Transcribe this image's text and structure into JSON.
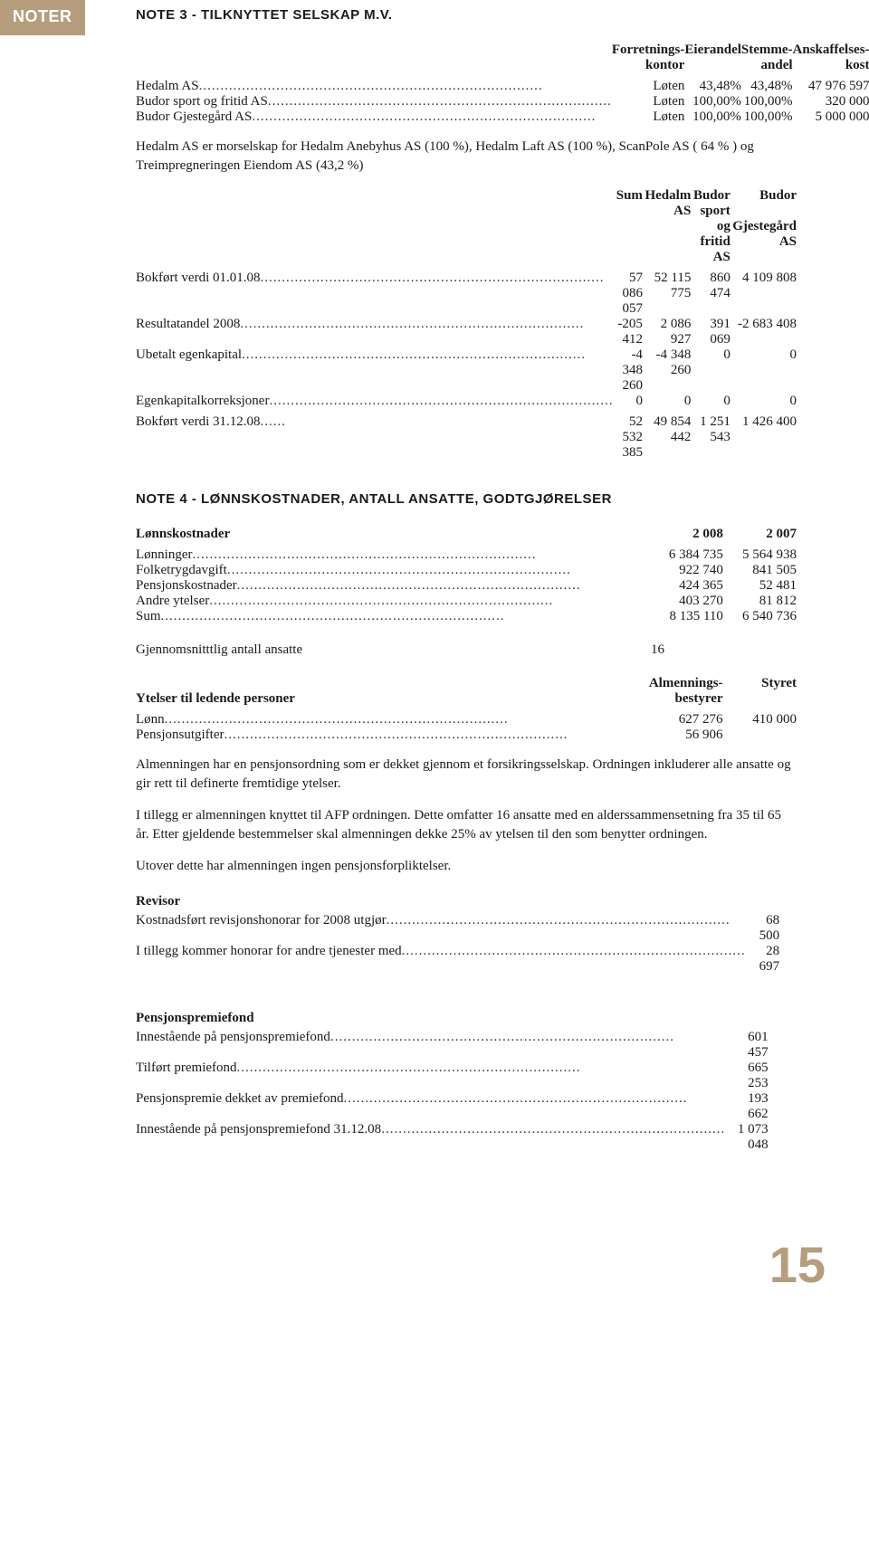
{
  "sidebar": {
    "label": "NOTER"
  },
  "note3": {
    "title": "NOTE 3 - TILKNYTTET SELSKAP M.V.",
    "headers": {
      "c1a": "Forretnings-",
      "c1b": "kontor",
      "c2": "Eierandel",
      "c3a": "Stemme-",
      "c3b": "andel",
      "c4a": "Anskaffelses-",
      "c4b": "kost"
    },
    "rows": [
      {
        "label": "Hedalm AS",
        "c1": "Løten",
        "c2": "43,48%",
        "c3": "43,48%",
        "c4": "47 976 597"
      },
      {
        "label": "Budor sport og fritid AS",
        "c1": "Løten",
        "c2": "100,00%",
        "c3": "100,00%",
        "c4": "320 000"
      },
      {
        "label": "Budor Gjestegård AS",
        "c1": "Løten",
        "c2": "100,00%",
        "c3": "100,00%",
        "c4": "5 000 000"
      }
    ],
    "note_para": "Hedalm AS er morselskap for Hedalm Anebyhus AS (100 %), Hedalm Laft AS (100 %), ScanPole AS ( 64 % ) og Treimpregneringen Eiendom AS (43,2 %)",
    "sub_headers": {
      "c1": "Sum",
      "c2": "Hedalm AS",
      "c3a": "Budor sport",
      "c3b": "og fritid AS",
      "c4a": "Budor",
      "c4b": "Gjestegård AS"
    },
    "sub_rows": [
      {
        "label": "Bokført verdi 01.01.08",
        "c1": "57 086 057",
        "c2": "52 115 775",
        "c3": "860 474",
        "c4": "4 109 808"
      },
      {
        "label": "Resultatandel 2008",
        "c1": "-205 412",
        "c2": "2 086 927",
        "c3": "391 069",
        "c4": "-2 683 408"
      },
      {
        "label": "Ubetalt egenkapital",
        "c1": "-4 348 260",
        "c2": "-4 348 260",
        "c3": "0",
        "c4": "0"
      },
      {
        "label": "Egenkapitalkorreksjoner",
        "c1": "0",
        "c2": "0",
        "c3": "0",
        "c4": "0"
      }
    ],
    "total_row": {
      "label": "Bokført verdi 31.12.08",
      "c1": "52 532 385",
      "c2": "49 854 442",
      "c3": "1 251 543",
      "c4": "1 426 400"
    }
  },
  "note4": {
    "title": "NOTE 4 - LØNNSKOSTNADER, ANTALL ANSATTE, GODTGJØRELSER",
    "lk": {
      "heading": "Lønnskostnader",
      "h2": "2 008",
      "h3": "2 007",
      "rows": [
        {
          "label": "Lønninger",
          "c2": "6 384 735",
          "c3": "5 564 938"
        },
        {
          "label": "Folketrygdavgift",
          "c2": "922 740",
          "c3": "841 505"
        },
        {
          "label": "Pensjonskostnader",
          "c2": "424 365",
          "c3": "52 481"
        },
        {
          "label": "Andre ytelser",
          "c2": "403 270",
          "c3": "81 812"
        },
        {
          "label": "Sum",
          "c2": "8 135 110",
          "c3": "6 540 736"
        }
      ]
    },
    "ansatte": {
      "label": "Gjennomsnitttlig antall ansatte",
      "value": "16"
    },
    "ledende": {
      "heading": "Ytelser til ledende personer",
      "h2a": "Almennings-",
      "h2b": "bestyrer",
      "h3": "Styret",
      "rows": [
        {
          "label": "Lønn",
          "c2": "627 276",
          "c3": "410 000"
        },
        {
          "label": "Pensjonsutgifter",
          "c2": "56 906",
          "c3": ""
        }
      ]
    },
    "paras": [
      "Almenningen har en pensjonsordning som er dekket gjennom et forsikringsselskap. Ordningen inkluderer alle ansatte og gir rett til definerte fremtidige ytelser.",
      "I tillegg er almenningen knyttet til AFP ordningen.  Dette omfatter 16 ansatte med en alderssammensetning fra 35 til 65 år.  Etter gjeldende bestemmelser skal almenningen dekke 25% av ytelsen til den som benytter ordningen.",
      "Utover dette har almenningen ingen pensjonsforpliktelser."
    ],
    "revisor": {
      "heading": "Revisor",
      "rows": [
        {
          "label": "Kostnadsført revisjonshonorar for 2008 utgjør",
          "value": "68 500"
        },
        {
          "label": "I tillegg kommer honorar for andre tjenester med",
          "value": "28 697"
        }
      ]
    },
    "pensjon": {
      "heading": "Pensjonspremiefond",
      "rows": [
        {
          "label": "Innestående på pensjonspremiefond",
          "value": "601 457"
        },
        {
          "label": "Tilført premiefond",
          "value": "665 253"
        },
        {
          "label": "Pensjonspremie dekket av premiefond",
          "value": "193 662"
        },
        {
          "label": "Innestående på pensjonspremiefond 31.12.08",
          "value": "1 073 048"
        }
      ]
    }
  },
  "page_number": "15"
}
